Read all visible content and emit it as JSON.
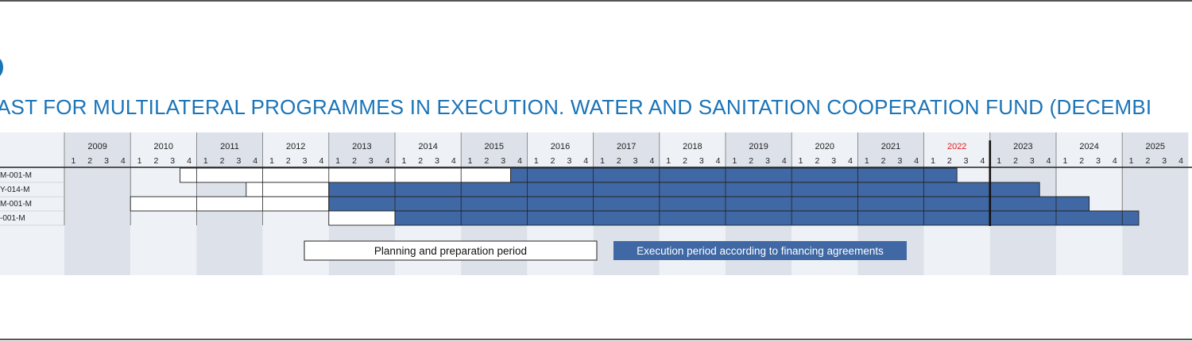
{
  "title": "AST FOR MULTILATERAL PROGRAMMES IN EXECUTION. WATER AND SANITATION COOPERATION FUND (DECEMBI",
  "colors": {
    "title": "#1a74b8",
    "execution": "#4068a4",
    "year_band_dark": "#dde2ea",
    "year_band_light": "#eef1f5",
    "current_year": "#e01f26"
  },
  "chart_data": {
    "type": "gantt",
    "unit": "quarter",
    "years": [
      "2009",
      "2010",
      "2011",
      "2012",
      "2013",
      "2014",
      "2015",
      "2016",
      "2017",
      "2018",
      "2019",
      "2020",
      "2021",
      "2022",
      "2023",
      "2024",
      "2025"
    ],
    "quarters": [
      "1",
      "2",
      "3",
      "4"
    ],
    "current_year": "2022",
    "cutoff": {
      "year": 2022,
      "quarter": 4
    },
    "programmes": [
      {
        "label": "M-001-M",
        "planning": {
          "start": [
            2010,
            4
          ],
          "end": [
            2015,
            3
          ]
        },
        "execution": {
          "start": [
            2015,
            4
          ],
          "end": [
            2022,
            2
          ]
        }
      },
      {
        "label": "Y-014-M",
        "planning": {
          "start": [
            2011,
            4
          ],
          "end": [
            2012,
            4
          ]
        },
        "execution": {
          "start": [
            2013,
            1
          ],
          "end": [
            2023,
            3
          ]
        }
      },
      {
        "label": "M-001-M",
        "planning": {
          "start": [
            2010,
            1
          ],
          "end": [
            2012,
            4
          ]
        },
        "execution": {
          "start": [
            2013,
            1
          ],
          "end": [
            2024,
            2
          ]
        }
      },
      {
        "label": "-001-M",
        "planning": {
          "start": [
            2013,
            1
          ],
          "end": [
            2014,
            4
          ]
        },
        "execution": {
          "start": [
            2014,
            1
          ],
          "end": [
            2025,
            1
          ]
        }
      }
    ],
    "legend": {
      "planning": "Planning and preparation period",
      "execution": "Execution period according to financing agreements"
    }
  }
}
